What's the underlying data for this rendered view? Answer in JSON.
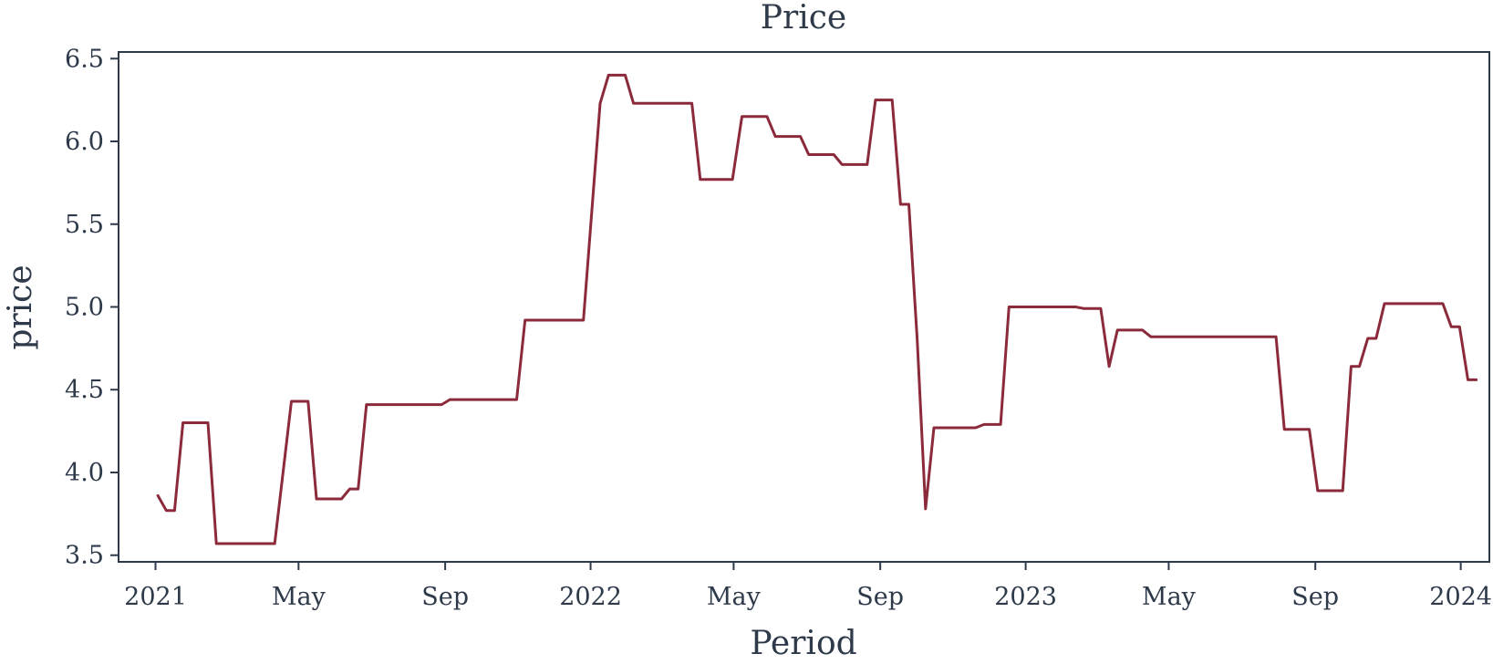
{
  "chart_data": {
    "type": "line",
    "title": "Price",
    "xlabel": "Period",
    "ylabel": "price",
    "xlim": [
      "2020-12-01",
      "2024-01-25"
    ],
    "ylim": [
      3.46,
      6.54
    ],
    "x_ticks": [
      {
        "date": "2021-01-01",
        "label": "2021"
      },
      {
        "date": "2021-05-01",
        "label": "May"
      },
      {
        "date": "2021-09-01",
        "label": "Sep"
      },
      {
        "date": "2022-01-01",
        "label": "2022"
      },
      {
        "date": "2022-05-01",
        "label": "May"
      },
      {
        "date": "2022-09-01",
        "label": "Sep"
      },
      {
        "date": "2023-01-01",
        "label": "2023"
      },
      {
        "date": "2023-05-01",
        "label": "May"
      },
      {
        "date": "2023-09-01",
        "label": "Sep"
      },
      {
        "date": "2024-01-01",
        "label": "2024"
      }
    ],
    "y_ticks": [
      {
        "value": 3.5,
        "label": "3.5"
      },
      {
        "value": 4.0,
        "label": "4.0"
      },
      {
        "value": 4.5,
        "label": "4.5"
      },
      {
        "value": 5.0,
        "label": "5.0"
      },
      {
        "value": 5.5,
        "label": "5.5"
      },
      {
        "value": 6.0,
        "label": "6.0"
      },
      {
        "value": 6.5,
        "label": "6.5"
      }
    ],
    "grid": false,
    "line_color": "#8b2a3a",
    "series": [
      {
        "points": [
          [
            "2021-01-03",
            3.86
          ],
          [
            "2021-01-10",
            3.77
          ],
          [
            "2021-01-17",
            3.77
          ],
          [
            "2021-01-24",
            4.3
          ],
          [
            "2021-01-31",
            4.3
          ],
          [
            "2021-02-14",
            4.3
          ],
          [
            "2021-02-21",
            3.57
          ],
          [
            "2021-04-11",
            3.57
          ],
          [
            "2021-04-25",
            4.43
          ],
          [
            "2021-05-09",
            4.43
          ],
          [
            "2021-05-16",
            3.84
          ],
          [
            "2021-06-06",
            3.84
          ],
          [
            "2021-06-13",
            3.9
          ],
          [
            "2021-06-20",
            3.9
          ],
          [
            "2021-06-27",
            4.41
          ],
          [
            "2021-08-29",
            4.41
          ],
          [
            "2021-09-05",
            4.44
          ],
          [
            "2021-10-31",
            4.44
          ],
          [
            "2021-11-07",
            4.92
          ],
          [
            "2021-12-26",
            4.92
          ],
          [
            "2022-01-09",
            6.23
          ],
          [
            "2022-01-16",
            6.4
          ],
          [
            "2022-01-30",
            6.4
          ],
          [
            "2022-02-06",
            6.23
          ],
          [
            "2022-03-27",
            6.23
          ],
          [
            "2022-04-03",
            5.77
          ],
          [
            "2022-04-30",
            5.77
          ],
          [
            "2022-05-08",
            6.15
          ],
          [
            "2022-05-29",
            6.15
          ],
          [
            "2022-06-05",
            6.03
          ],
          [
            "2022-06-26",
            6.03
          ],
          [
            "2022-07-03",
            5.92
          ],
          [
            "2022-07-24",
            5.92
          ],
          [
            "2022-07-31",
            5.86
          ],
          [
            "2022-08-21",
            5.86
          ],
          [
            "2022-08-28",
            6.25
          ],
          [
            "2022-09-11",
            6.25
          ],
          [
            "2022-09-18",
            5.62
          ],
          [
            "2022-09-25",
            5.62
          ],
          [
            "2022-10-02",
            4.8
          ],
          [
            "2022-10-09",
            3.78
          ],
          [
            "2022-10-16",
            4.27
          ],
          [
            "2022-11-20",
            4.27
          ],
          [
            "2022-11-27",
            4.29
          ],
          [
            "2022-12-11",
            4.29
          ],
          [
            "2022-12-18",
            5.0
          ],
          [
            "2023-02-12",
            5.0
          ],
          [
            "2023-02-19",
            4.99
          ],
          [
            "2023-03-05",
            4.99
          ],
          [
            "2023-03-12",
            4.64
          ],
          [
            "2023-03-19",
            4.86
          ],
          [
            "2023-04-09",
            4.86
          ],
          [
            "2023-04-16",
            4.82
          ],
          [
            "2023-07-30",
            4.82
          ],
          [
            "2023-08-06",
            4.26
          ],
          [
            "2023-08-27",
            4.26
          ],
          [
            "2023-09-03",
            3.89
          ],
          [
            "2023-09-24",
            3.89
          ],
          [
            "2023-10-01",
            4.64
          ],
          [
            "2023-10-08",
            4.64
          ],
          [
            "2023-10-15",
            4.81
          ],
          [
            "2023-10-22",
            4.81
          ],
          [
            "2023-10-29",
            5.02
          ],
          [
            "2023-12-17",
            5.02
          ],
          [
            "2023-12-24",
            4.88
          ],
          [
            "2023-12-31",
            4.88
          ],
          [
            "2024-01-07",
            4.56
          ],
          [
            "2024-01-14",
            4.56
          ]
        ]
      }
    ]
  }
}
